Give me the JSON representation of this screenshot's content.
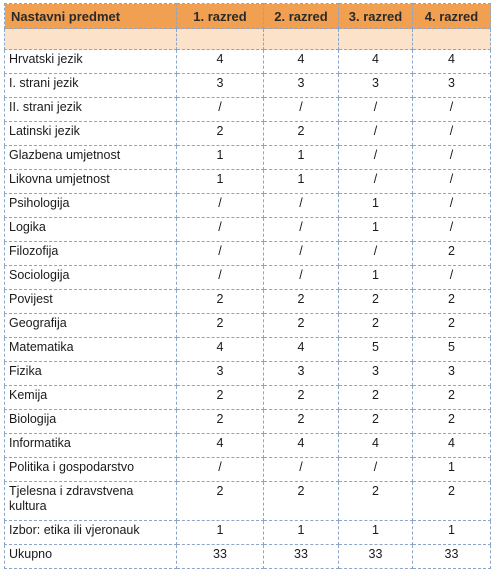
{
  "table": {
    "headers": [
      "Nastavni predmet",
      "1. razred",
      "2. razred",
      "3. razred",
      "4. razred"
    ],
    "rows": [
      {
        "subject": "Hrvatski  jezik",
        "values": [
          "4",
          "4",
          "4",
          "4"
        ]
      },
      {
        "subject": "I. strani jezik",
        "values": [
          "3",
          "3",
          "3",
          "3"
        ]
      },
      {
        "subject": "II. strani jezik",
        "values": [
          "/",
          "/",
          "/",
          "/"
        ]
      },
      {
        "subject": "Latinski  jezik",
        "values": [
          "2",
          "2",
          "/",
          "/"
        ]
      },
      {
        "subject": "Glazbena  umjetnost",
        "values": [
          "1",
          "1",
          "/",
          "/"
        ]
      },
      {
        "subject": "Likovna umjetnost",
        "values": [
          "1",
          "1",
          "/",
          "/"
        ]
      },
      {
        "subject": "Psihologija",
        "values": [
          "/",
          "/",
          "1",
          "/"
        ]
      },
      {
        "subject": "Logika",
        "values": [
          "/",
          "/",
          "1",
          "/"
        ]
      },
      {
        "subject": "Filozofija",
        "values": [
          "/",
          "/",
          "/",
          "2"
        ]
      },
      {
        "subject": "Sociologija",
        "values": [
          "/",
          "/",
          "1",
          "/"
        ]
      },
      {
        "subject": "Povijest",
        "values": [
          "2",
          "2",
          "2",
          "2"
        ]
      },
      {
        "subject": "Geografija",
        "values": [
          "2",
          "2",
          "2",
          "2"
        ]
      },
      {
        "subject": "Matematika",
        "values": [
          "4",
          "4",
          "5",
          "5"
        ]
      },
      {
        "subject": "Fizika",
        "values": [
          "3",
          "3",
          "3",
          "3"
        ]
      },
      {
        "subject": "Kemija",
        "values": [
          "2",
          "2",
          "2",
          "2"
        ]
      },
      {
        "subject": "Biologija",
        "values": [
          "2",
          "2",
          "2",
          "2"
        ]
      },
      {
        "subject": "Informatika",
        "values": [
          "4",
          "4",
          "4",
          "4"
        ]
      },
      {
        "subject": "Politika  i gospodarstvo",
        "values": [
          "/",
          "/",
          "/",
          "1"
        ]
      },
      {
        "subject": "Tjelesna i zdravstvena kultura",
        "values": [
          "2",
          "2",
          "2",
          "2"
        ]
      },
      {
        "subject": "Izbor: etika ili vjeronauk",
        "values": [
          "1",
          "1",
          "1",
          "1"
        ]
      },
      {
        "subject": "Ukupno",
        "values": [
          "33",
          "33",
          "33",
          "33"
        ]
      }
    ]
  },
  "colors": {
    "header_bg": "#f0a050",
    "spacer_bg": "#fbe2c8",
    "border": "#8da6c8"
  }
}
